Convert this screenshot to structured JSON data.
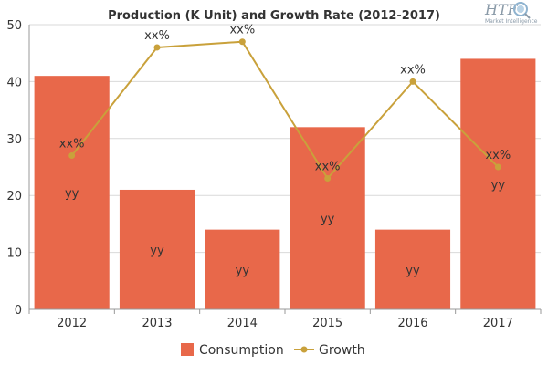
{
  "chart_data": {
    "type": "bar",
    "title": "Production (K Unit) and Growth Rate (2012-2017)",
    "categories": [
      "2012",
      "2013",
      "2014",
      "2015",
      "2016",
      "2017"
    ],
    "ylim": [
      0,
      50
    ],
    "yticks": [
      "0",
      "10",
      "20",
      "30",
      "40",
      "50"
    ],
    "grid": true,
    "legend_position": "bottom-center",
    "series": [
      {
        "name": "Consumption",
        "type": "bar",
        "color": "#e8684a",
        "values": [
          41,
          21,
          14,
          32,
          14,
          44
        ],
        "labels": [
          "yy",
          "yy",
          "yy",
          "yy",
          "yy",
          "yy"
        ]
      },
      {
        "name": "Growth",
        "type": "line",
        "color": "#c9a13b",
        "values": [
          27,
          46,
          47,
          23,
          40,
          25
        ],
        "labels": [
          "xx%",
          "xx%",
          "xx%",
          "xx%",
          "xx%",
          "xx%"
        ]
      }
    ]
  },
  "logo": {
    "text": "HTF",
    "subtext": "Market Intelligence",
    "icon": "magnifier-globe-icon"
  }
}
